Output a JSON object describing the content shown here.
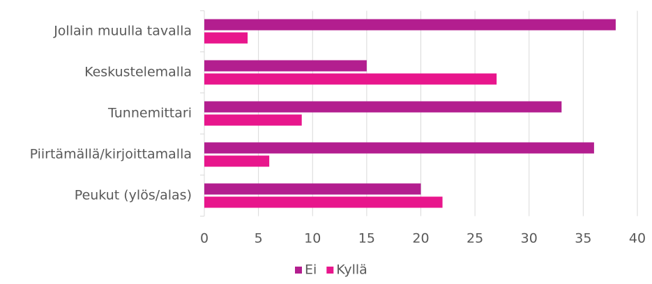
{
  "chart_data": {
    "type": "barh",
    "categories": [
      "Jollain muulla tavalla",
      "Keskustelemalla",
      "Tunnemittari",
      "Piirtämällä/kirjoittamalla",
      "Peukut (ylös/alas)"
    ],
    "series": [
      {
        "name": "Ei",
        "color": "#b31e8f",
        "values": [
          38,
          15,
          33,
          36,
          20
        ]
      },
      {
        "name": "Kyllä",
        "color": "#e8168c",
        "values": [
          4,
          27,
          9,
          6,
          22
        ]
      }
    ],
    "xlim": [
      0,
      40
    ],
    "xticks": [
      0,
      5,
      10,
      15,
      20,
      25,
      30,
      35,
      40
    ],
    "grid": true,
    "legend": "bottom"
  }
}
